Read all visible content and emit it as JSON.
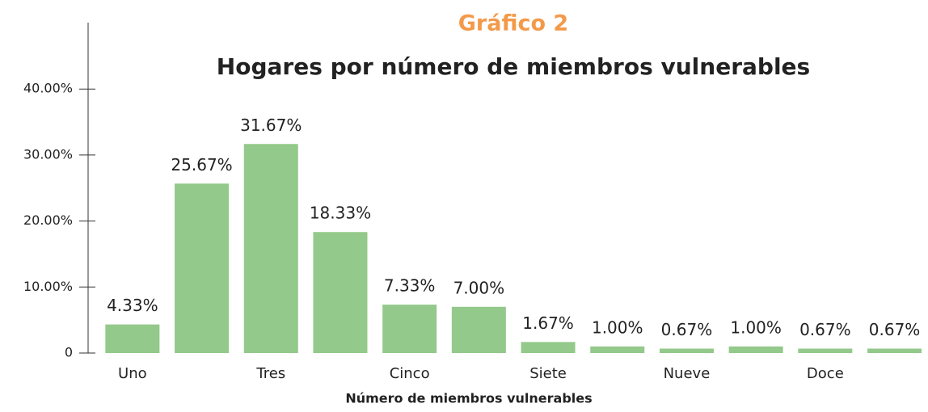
{
  "chart_data": {
    "type": "bar",
    "title": "Gráfico 2",
    "subtitle": "Hogares por número de miembros vulnerables",
    "x_label": "Número de miembros vulnerables",
    "categories": [
      "Uno",
      null,
      "Tres",
      null,
      "Cinco",
      null,
      "Siete",
      null,
      "Nueve",
      null,
      "Doce",
      null
    ],
    "values": [
      4.33,
      25.67,
      31.67,
      18.33,
      7.33,
      7.0,
      1.67,
      1.0,
      0.67,
      1.0,
      0.67,
      0.67
    ],
    "value_labels": [
      "4.33%",
      "25.67%",
      "31.67%",
      "18.33%",
      "7.33%",
      "7.00%",
      "1.67%",
      "1.00%",
      "0.67%",
      "1.00%",
      "0.67%",
      "0.67%"
    ],
    "color": "#93c98a",
    "ylim": [
      0,
      50
    ],
    "yticks": [
      0,
      {
        "value": 10,
        "label": "10.00%"
      },
      {
        "value": 20,
        "label": "20.00%"
      },
      {
        "value": 30,
        "label": "30.00%"
      },
      {
        "value": 40,
        "label": "40.00%"
      }
    ],
    "grid": false
  }
}
